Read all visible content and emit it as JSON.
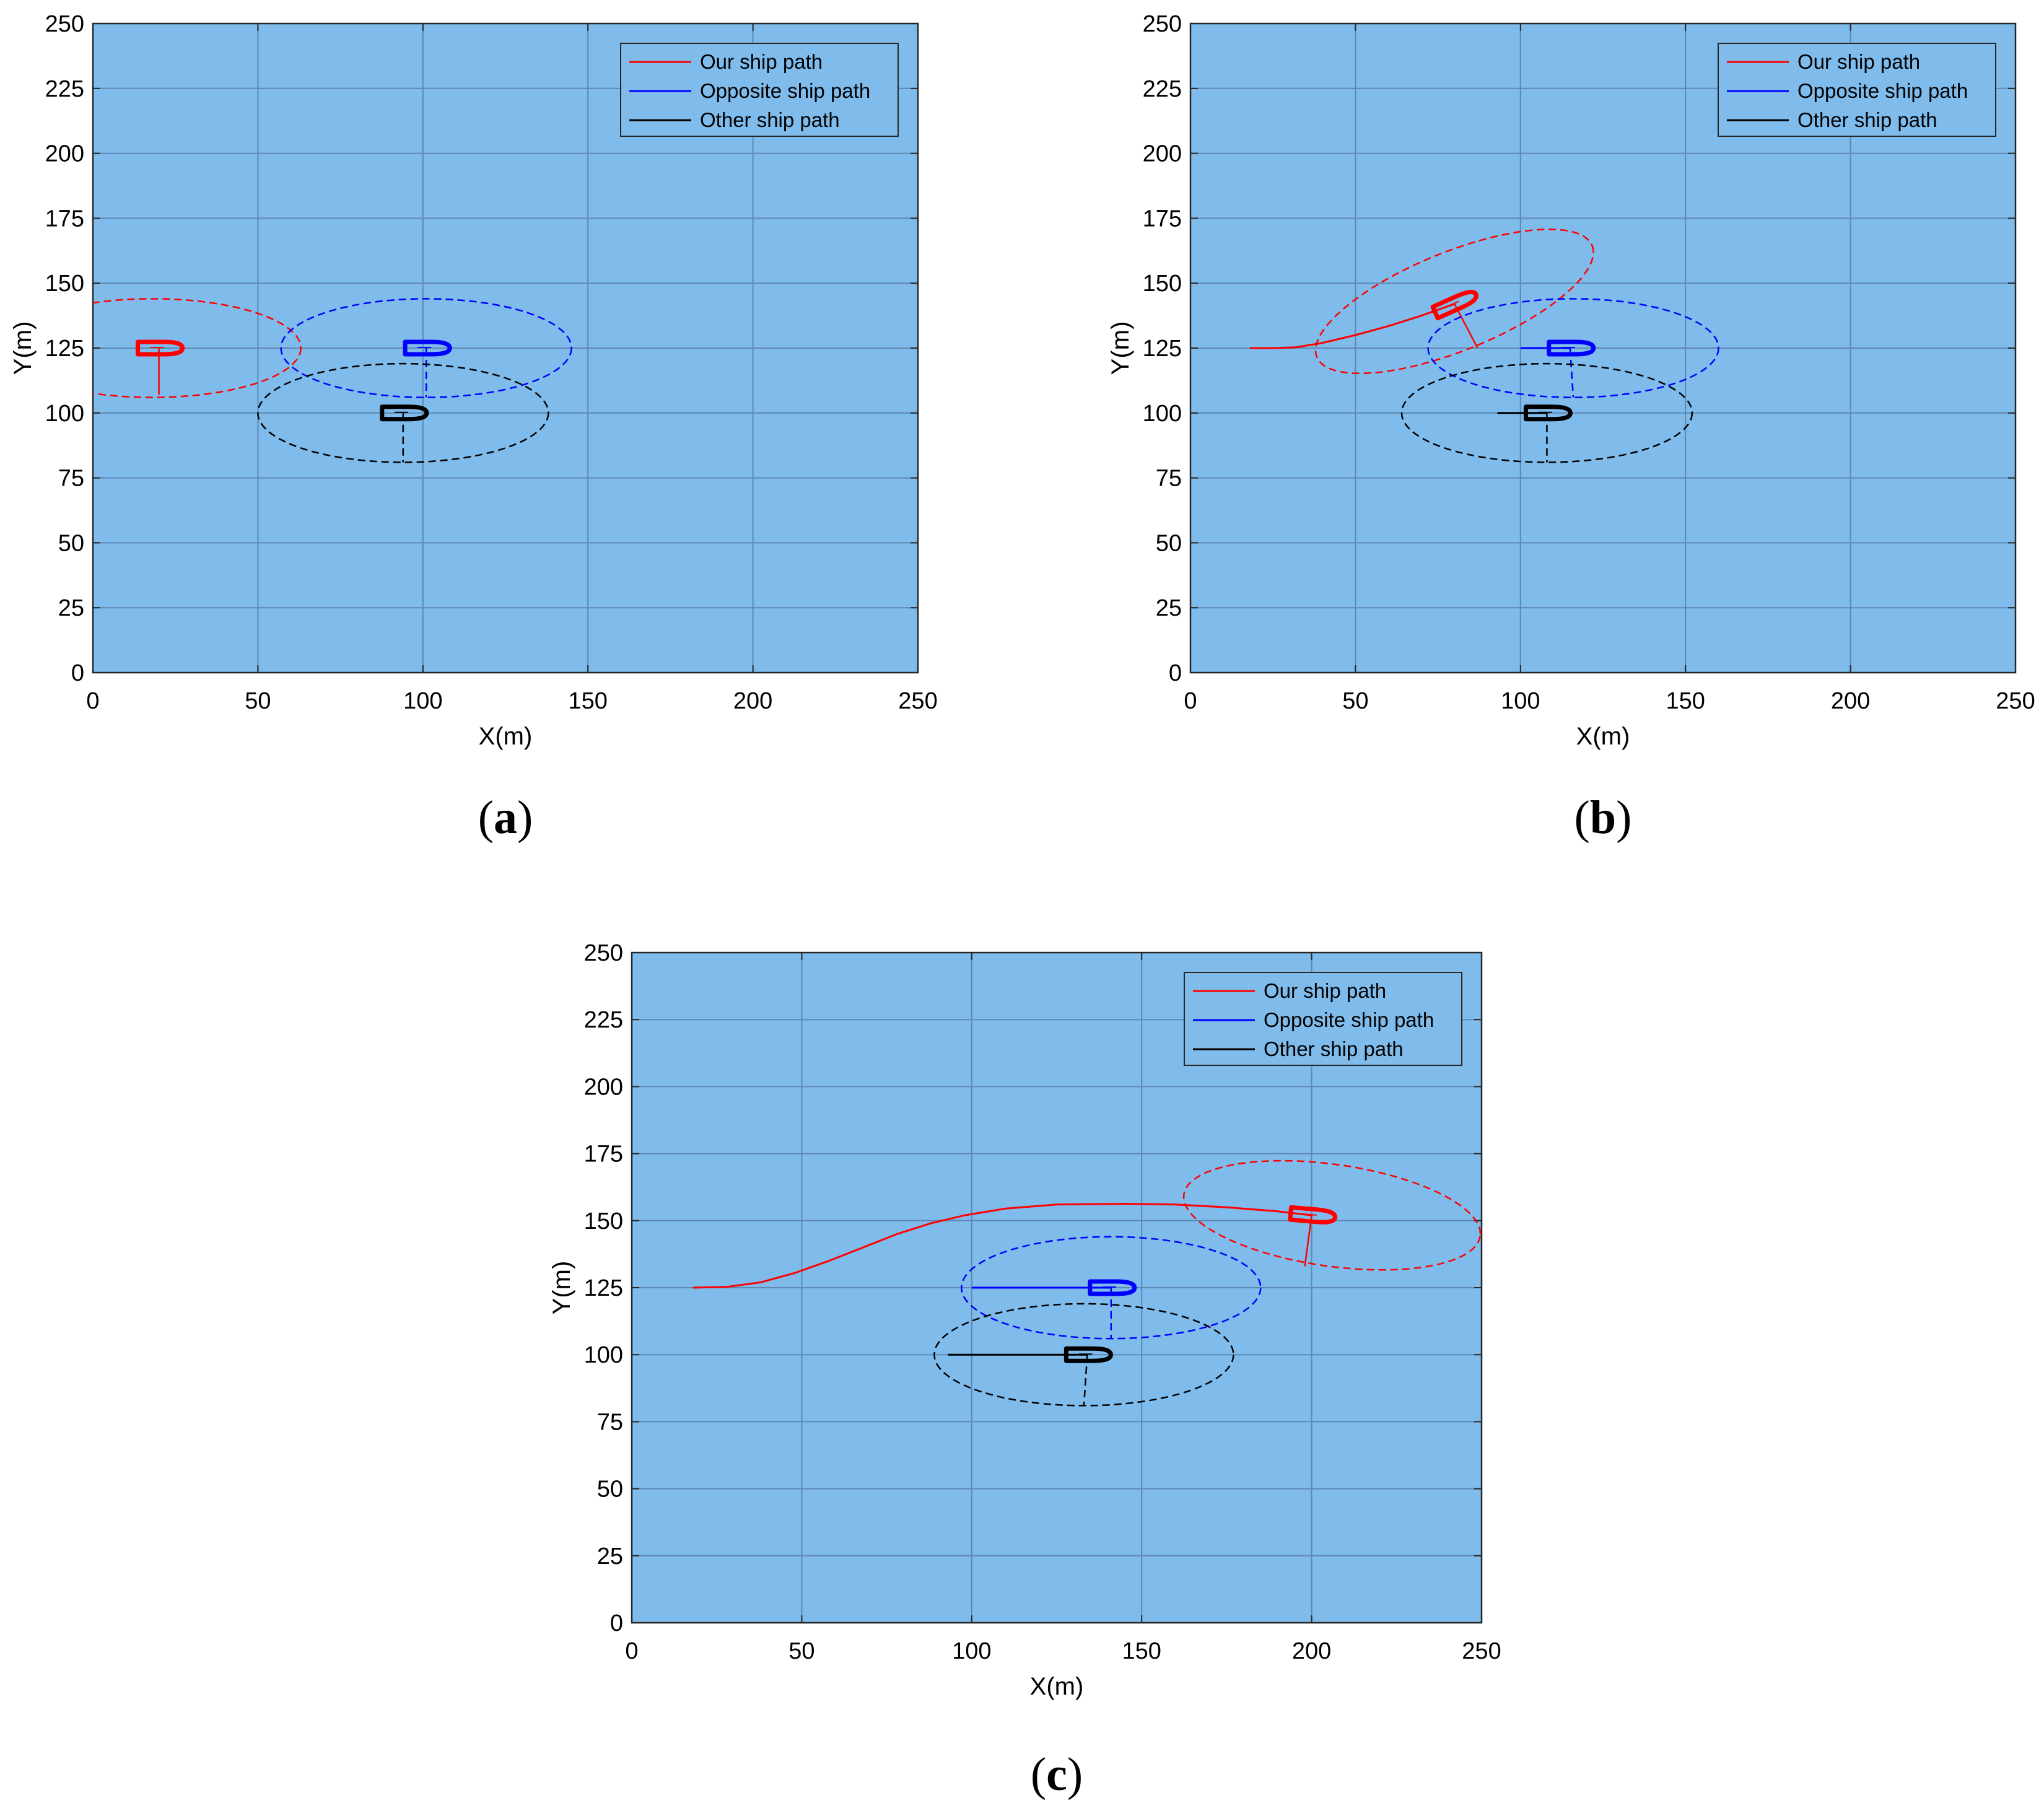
{
  "figure": {
    "colors": {
      "plot_background": "#7fbbeb",
      "grid": "#5e88b3",
      "our_ship": "#ff0000",
      "opposite_ship": "#0000ff",
      "other_ship": "#000000"
    },
    "icons": {
      "ship_marker": "ship-hull-icon"
    }
  },
  "chart_data": [
    {
      "id": "a",
      "type": "line",
      "caption": "a",
      "xlabel": "X(m)",
      "ylabel": "Y(m)",
      "xlim": [
        0,
        250
      ],
      "ylim": [
        0,
        250
      ],
      "xticks": [
        "0",
        "50",
        "100",
        "150",
        "200",
        "250"
      ],
      "yticks": [
        "0",
        "25",
        "50",
        "75",
        "100",
        "125",
        "150",
        "175",
        "200",
        "225",
        "250"
      ],
      "grid": true,
      "legend_position": "top-right",
      "legend": [
        "Our ship path",
        "Opposite ship path",
        "Other ship path"
      ],
      "series": [
        {
          "name": "Our ship path",
          "color": "#ff0000",
          "path": [],
          "ship": {
            "x": 20,
            "y": 125,
            "heading_deg": 0
          },
          "ellipse": {
            "cx": 18,
            "cy": 125,
            "rx": 45,
            "ry": 19,
            "rotation_deg": 0
          },
          "line_end": {
            "x": 20,
            "y": 107
          }
        },
        {
          "name": "Opposite ship path",
          "color": "#0000ff",
          "path": [],
          "ship": {
            "x": 101,
            "y": 125,
            "heading_deg": 0
          },
          "ellipse": {
            "cx": 101,
            "cy": 125,
            "rx": 44,
            "ry": 19,
            "rotation_deg": 0
          },
          "line_end": {
            "x": 101,
            "y": 106
          }
        },
        {
          "name": "Other ship path",
          "color": "#000000",
          "path": [],
          "ship": {
            "x": 94,
            "y": 100,
            "heading_deg": 0
          },
          "ellipse": {
            "cx": 94,
            "cy": 100,
            "rx": 44,
            "ry": 19,
            "rotation_deg": 0
          },
          "line_end": {
            "x": 94,
            "y": 81
          }
        }
      ]
    },
    {
      "id": "b",
      "type": "line",
      "caption": "b",
      "xlabel": "X(m)",
      "ylabel": "Y(m)",
      "xlim": [
        0,
        250
      ],
      "ylim": [
        0,
        250
      ],
      "xticks": [
        "0",
        "50",
        "100",
        "150",
        "200",
        "250"
      ],
      "yticks": [
        "0",
        "25",
        "50",
        "75",
        "100",
        "125",
        "150",
        "175",
        "200",
        "225",
        "250"
      ],
      "grid": true,
      "legend_position": "top-right",
      "legend": [
        "Our ship path",
        "Opposite ship path",
        "Other ship path"
      ],
      "series": [
        {
          "name": "Our ship path",
          "color": "#ff0000",
          "path": [
            [
              18,
              125
            ],
            [
              25,
              125
            ],
            [
              32,
              125.3
            ],
            [
              40,
              127
            ],
            [
              50,
              130
            ],
            [
              60,
              133.5
            ],
            [
              70,
              137.5
            ],
            [
              80,
              142
            ]
          ],
          "ship": {
            "x": 80,
            "y": 142,
            "heading_deg": 24
          },
          "ellipse": {
            "cx": 80,
            "cy": 143,
            "rx": 45,
            "ry": 19,
            "rotation_deg": 22
          },
          "line_end": {
            "x": 87,
            "y": 125
          }
        },
        {
          "name": "Opposite ship path",
          "color": "#0000ff",
          "path": [
            [
              100,
              125
            ],
            [
              115,
              125
            ]
          ],
          "ship": {
            "x": 115,
            "y": 125,
            "heading_deg": 0
          },
          "ellipse": {
            "cx": 116,
            "cy": 125,
            "rx": 44,
            "ry": 19,
            "rotation_deg": 0
          },
          "line_end": {
            "x": 116,
            "y": 106
          }
        },
        {
          "name": "Other ship path",
          "color": "#000000",
          "path": [
            [
              93,
              100
            ],
            [
              108,
              100
            ]
          ],
          "ship": {
            "x": 108,
            "y": 100,
            "heading_deg": 0
          },
          "ellipse": {
            "cx": 108,
            "cy": 100,
            "rx": 44,
            "ry": 19,
            "rotation_deg": 0
          },
          "line_end": {
            "x": 108,
            "y": 81
          }
        }
      ]
    },
    {
      "id": "c",
      "type": "line",
      "caption": "c",
      "xlabel": "X(m)",
      "ylabel": "Y(m)",
      "xlim": [
        0,
        250
      ],
      "ylim": [
        0,
        250
      ],
      "xticks": [
        "0",
        "50",
        "100",
        "150",
        "200",
        "250"
      ],
      "yticks": [
        "0",
        "25",
        "50",
        "75",
        "100",
        "125",
        "150",
        "175",
        "200",
        "225",
        "250"
      ],
      "grid": true,
      "legend_position": "top-right",
      "legend": [
        "Our ship path",
        "Opposite ship path",
        "Other ship path"
      ],
      "series": [
        {
          "name": "Our ship path",
          "color": "#ff0000",
          "path": [
            [
              18,
              125
            ],
            [
              28,
              125.3
            ],
            [
              38,
              127
            ],
            [
              48,
              130.5
            ],
            [
              58,
              135
            ],
            [
              68,
              140
            ],
            [
              78,
              145
            ],
            [
              88,
              149
            ],
            [
              98,
              152
            ],
            [
              110,
              154.5
            ],
            [
              125,
              156
            ],
            [
              145,
              156.3
            ],
            [
              160,
              156
            ],
            [
              175,
              155
            ],
            [
              190,
              153.5
            ],
            [
              200,
              152
            ]
          ],
          "ship": {
            "x": 200,
            "y": 152,
            "heading_deg": -5
          },
          "ellipse": {
            "cx": 206,
            "cy": 152,
            "rx": 44,
            "ry": 19,
            "rotation_deg": -8
          },
          "line_end": {
            "x": 198,
            "y": 133
          }
        },
        {
          "name": "Opposite ship path",
          "color": "#0000ff",
          "path": [
            [
              100,
              125
            ],
            [
              141,
              125
            ]
          ],
          "ship": {
            "x": 141,
            "y": 125,
            "heading_deg": 0
          },
          "ellipse": {
            "cx": 141,
            "cy": 125,
            "rx": 44,
            "ry": 19,
            "rotation_deg": 0
          },
          "line_end": {
            "x": 141,
            "y": 106
          }
        },
        {
          "name": "Other ship path",
          "color": "#000000",
          "path": [
            [
              93,
              100
            ],
            [
              134,
              100
            ]
          ],
          "ship": {
            "x": 134,
            "y": 100,
            "heading_deg": 0
          },
          "ellipse": {
            "cx": 133,
            "cy": 100,
            "rx": 44,
            "ry": 19,
            "rotation_deg": 0
          },
          "line_end": {
            "x": 133,
            "y": 81
          }
        }
      ]
    }
  ]
}
